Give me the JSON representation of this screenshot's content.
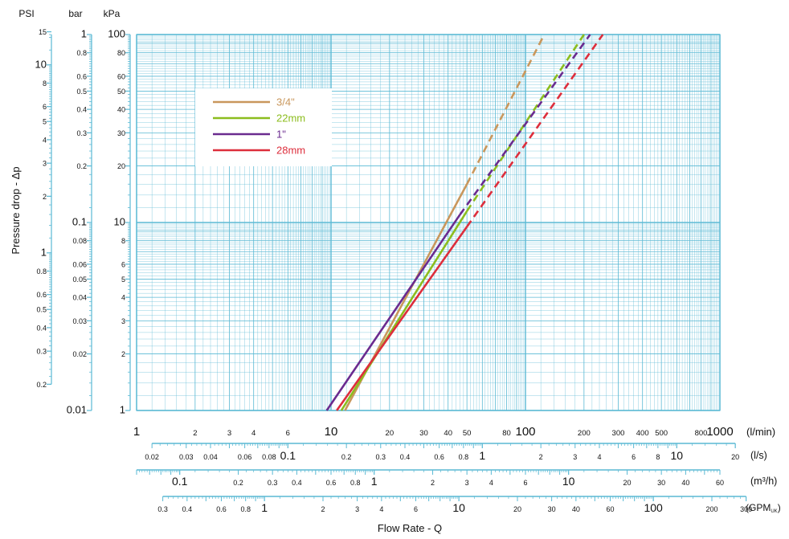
{
  "chart_data": {
    "type": "line",
    "ylabel": "Pressure drop - Δp",
    "xlabel": "Flow Rate - Q",
    "x_scale": "log",
    "y_scale": "log",
    "xlim": [
      1,
      1000
    ],
    "ylim": [
      1,
      100
    ],
    "grid": true,
    "legend_position": "top-left",
    "x_unit_main": "(l/min)",
    "y_axis_units": [
      "PSI",
      "bar",
      "kPa"
    ],
    "y_ticks_kpa": [
      1,
      2,
      3,
      4,
      5,
      6,
      8,
      10,
      20,
      30,
      40,
      50,
      60,
      80,
      100
    ],
    "y_ticks_bar": [
      {
        "v": 0.01,
        "label": "0.01"
      },
      {
        "v": 0.02,
        "label": "0.02"
      },
      {
        "v": 0.03,
        "label": "0.03"
      },
      {
        "v": 0.04,
        "label": "0.04"
      },
      {
        "v": 0.05,
        "label": "0.05"
      },
      {
        "v": 0.06,
        "label": "0.06"
      },
      {
        "v": 0.08,
        "label": "0.08"
      },
      {
        "v": 0.1,
        "label": "0.1"
      },
      {
        "v": 0.2,
        "label": "0.2"
      },
      {
        "v": 0.3,
        "label": "0.3"
      },
      {
        "v": 0.4,
        "label": "0.4"
      },
      {
        "v": 0.5,
        "label": "0.5"
      },
      {
        "v": 0.6,
        "label": "0.6"
      },
      {
        "v": 0.8,
        "label": "0.8"
      },
      {
        "v": 1,
        "label": "1"
      }
    ],
    "y_ticks_psi": [
      {
        "v": 0.2,
        "label": "0.2"
      },
      {
        "v": 0.3,
        "label": "0.3"
      },
      {
        "v": 0.4,
        "label": "0.4"
      },
      {
        "v": 0.5,
        "label": "0.5"
      },
      {
        "v": 0.6,
        "label": "0.6"
      },
      {
        "v": 0.8,
        "label": "0.8"
      },
      {
        "v": 1,
        "label": "1"
      },
      {
        "v": 2,
        "label": "2"
      },
      {
        "v": 3,
        "label": "3"
      },
      {
        "v": 4,
        "label": "4"
      },
      {
        "v": 5,
        "label": "5"
      },
      {
        "v": 6,
        "label": "6"
      },
      {
        "v": 8,
        "label": "8"
      },
      {
        "v": 10,
        "label": "10"
      },
      {
        "v": 15,
        "label": "15"
      }
    ],
    "x_ticks_lmin": [
      {
        "v": 1,
        "label": "1"
      },
      {
        "v": 2,
        "label": "2"
      },
      {
        "v": 3,
        "label": "3"
      },
      {
        "v": 4,
        "label": "4"
      },
      {
        "v": 6,
        "label": "6"
      },
      {
        "v": 10,
        "label": "10"
      },
      {
        "v": 20,
        "label": "20"
      },
      {
        "v": 30,
        "label": "30"
      },
      {
        "v": 40,
        "label": "40"
      },
      {
        "v": 50,
        "label": "50"
      },
      {
        "v": 80,
        "label": "80"
      },
      {
        "v": 100,
        "label": "100"
      },
      {
        "v": 200,
        "label": "200"
      },
      {
        "v": 300,
        "label": "300"
      },
      {
        "v": 400,
        "label": "400"
      },
      {
        "v": 500,
        "label": "500"
      },
      {
        "v": 800,
        "label": "800"
      },
      {
        "v": 1000,
        "label": "1000"
      }
    ],
    "secondary_axes": [
      {
        "unit": "(l/s)",
        "min": 0.02,
        "max": 20,
        "ticks": [
          {
            "v": 0.02,
            "label": "0.02"
          },
          {
            "v": 0.03,
            "label": "0.03"
          },
          {
            "v": 0.04,
            "label": "0.04"
          },
          {
            "v": 0.06,
            "label": "0.06"
          },
          {
            "v": 0.08,
            "label": "0.08"
          },
          {
            "v": 0.1,
            "label": "0.1"
          },
          {
            "v": 0.2,
            "label": "0.2"
          },
          {
            "v": 0.3,
            "label": "0.3"
          },
          {
            "v": 0.4,
            "label": "0.4"
          },
          {
            "v": 0.6,
            "label": "0.6"
          },
          {
            "v": 0.8,
            "label": "0.8"
          },
          {
            "v": 1,
            "label": "1"
          },
          {
            "v": 2,
            "label": "2"
          },
          {
            "v": 3,
            "label": "3"
          },
          {
            "v": 4,
            "label": "4"
          },
          {
            "v": 6,
            "label": "6"
          },
          {
            "v": 8,
            "label": "8"
          },
          {
            "v": 10,
            "label": "10"
          },
          {
            "v": 20,
            "label": "20"
          }
        ]
      },
      {
        "unit": "(m³/h)",
        "min": 0.06,
        "max": 60,
        "ticks": [
          {
            "v": 0.1,
            "label": "0.1"
          },
          {
            "v": 0.2,
            "label": "0.2"
          },
          {
            "v": 0.3,
            "label": "0.3"
          },
          {
            "v": 0.4,
            "label": "0.4"
          },
          {
            "v": 0.6,
            "label": "0.6"
          },
          {
            "v": 0.8,
            "label": "0.8"
          },
          {
            "v": 1,
            "label": "1"
          },
          {
            "v": 2,
            "label": "2"
          },
          {
            "v": 3,
            "label": "3"
          },
          {
            "v": 4,
            "label": "4"
          },
          {
            "v": 6,
            "label": "6"
          },
          {
            "v": 10,
            "label": "10"
          },
          {
            "v": 20,
            "label": "20"
          },
          {
            "v": 30,
            "label": "30"
          },
          {
            "v": 40,
            "label": "40"
          },
          {
            "v": 60,
            "label": "60"
          }
        ]
      },
      {
        "unit": "(GPMUK)",
        "min": 0.3,
        "max": 300,
        "ticks": [
          {
            "v": 0.3,
            "label": "0.3"
          },
          {
            "v": 0.4,
            "label": "0.4"
          },
          {
            "v": 0.6,
            "label": "0.6"
          },
          {
            "v": 0.8,
            "label": "0.8"
          },
          {
            "v": 1,
            "label": "1"
          },
          {
            "v": 2,
            "label": "2"
          },
          {
            "v": 3,
            "label": "3"
          },
          {
            "v": 4,
            "label": "4"
          },
          {
            "v": 6,
            "label": "6"
          },
          {
            "v": 10,
            "label": "10"
          },
          {
            "v": 20,
            "label": "20"
          },
          {
            "v": 30,
            "label": "30"
          },
          {
            "v": 40,
            "label": "40"
          },
          {
            "v": 60,
            "label": "60"
          },
          {
            "v": 100,
            "label": "100"
          },
          {
            "v": 200,
            "label": "200"
          },
          {
            "v": 300,
            "label": "300"
          }
        ]
      }
    ],
    "series": [
      {
        "name": "3/4\"",
        "color": "#c9975c",
        "solid": [
          [
            11.8,
            1
          ],
          [
            50,
            16
          ]
        ],
        "dashed": [
          [
            50,
            16
          ],
          [
            125,
            100
          ]
        ]
      },
      {
        "name": "22mm",
        "color": "#8cbd1e",
        "solid": [
          [
            11.3,
            1
          ],
          [
            50,
            11.5
          ]
        ],
        "dashed": [
          [
            50,
            11.5
          ],
          [
            200,
            100
          ]
        ]
      },
      {
        "name": "1\"",
        "color": "#6a2b8f",
        "solid": [
          [
            9.5,
            1
          ],
          [
            46,
            11
          ]
        ],
        "dashed": [
          [
            46,
            11
          ],
          [
            215,
            100
          ]
        ]
      },
      {
        "name": "28mm",
        "color": "#dd2e3c",
        "solid": [
          [
            10.7,
            1
          ],
          [
            50,
            9.5
          ]
        ],
        "dashed": [
          [
            50,
            9.5
          ],
          [
            250,
            100
          ]
        ]
      }
    ],
    "colors": {
      "grid": "#5ab9d4",
      "axis_tick": "#5ab9d4",
      "text": "#111111"
    }
  }
}
